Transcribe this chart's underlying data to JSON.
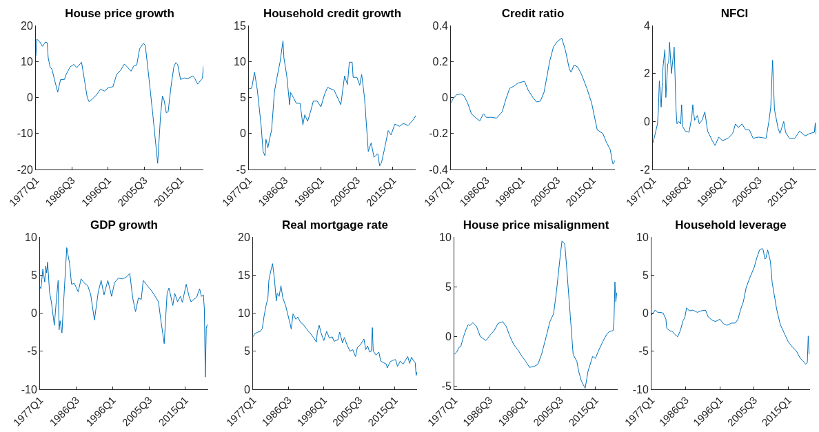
{
  "chart_data": [
    {
      "type": "line",
      "title": "House price growth",
      "color": "#0072bd",
      "xlim": [
        "1977-01",
        "2021-01"
      ],
      "ylim": [
        -20,
        20
      ],
      "yticks": [
        -20,
        -10,
        0,
        10,
        20
      ],
      "xticks": [
        {
          "value": "1977-01",
          "label": "1977Q1"
        },
        {
          "value": "1986-07",
          "label": "1986Q3"
        },
        {
          "value": "1996-01",
          "label": "1996Q1"
        },
        {
          "value": "2005-07",
          "label": "2005Q3"
        },
        {
          "value": "2015-01",
          "label": "2015Q1"
        }
      ],
      "x": [
        "1977-01",
        "1977-04",
        "1978-01",
        "1978-10",
        "1979-07",
        "1980-01",
        "1980-04",
        "1980-10",
        "1981-04",
        "1982-01",
        "1982-10",
        "1983-07",
        "1984-07",
        "1985-01",
        "1986-01",
        "1987-01",
        "1987-10",
        "1989-01",
        "1989-10",
        "1990-07",
        "1991-01",
        "1991-10",
        "1992-10",
        "1994-01",
        "1995-01",
        "1996-01",
        "1997-04",
        "1998-04",
        "1999-04",
        "2000-04",
        "2001-01",
        "2002-01",
        "2002-10",
        "2003-07",
        "2004-04",
        "2005-04",
        "2005-10",
        "2006-10",
        "2007-10",
        "2009-01",
        "2009-10",
        "2010-04",
        "2010-10",
        "2011-04",
        "2011-10",
        "2012-07",
        "2013-04",
        "2013-10",
        "2014-04",
        "2015-01",
        "2016-01",
        "2017-01",
        "2018-04",
        "2018-10",
        "2019-07",
        "2020-07",
        "2020-10",
        "2021-01"
      ],
      "values": [
        11.5,
        16.2,
        15.5,
        14.2,
        15.4,
        15.2,
        11,
        8.5,
        7.8,
        4.5,
        1.5,
        5,
        5,
        6.5,
        8.5,
        9.2,
        8.3,
        9.8,
        5,
        0,
        -1.2,
        -0.5,
        0.5,
        2.3,
        1.8,
        2.7,
        3,
        6.5,
        7.5,
        9.3,
        8.5,
        7.3,
        8.8,
        9,
        13.5,
        15,
        14.5,
        5,
        -5,
        -18.3,
        -5,
        0.4,
        -1,
        -4.2,
        -4,
        3,
        8.5,
        9.7,
        9.2,
        5,
        5.4,
        5.3,
        6,
        5.3,
        3.7,
        5,
        5.3,
        8.7
      ]
    },
    {
      "type": "line",
      "title": "Household credit growth",
      "color": "#0072bd",
      "xlim": [
        "1977-01",
        "2021-01"
      ],
      "ylim": [
        -5,
        15
      ],
      "yticks": [
        -5,
        0,
        5,
        10,
        15
      ],
      "xticks": [
        {
          "value": "1977-01",
          "label": "1977Q1"
        },
        {
          "value": "1986-07",
          "label": "1986Q3"
        },
        {
          "value": "1996-01",
          "label": "1996Q1"
        },
        {
          "value": "2005-07",
          "label": "2005Q3"
        },
        {
          "value": "2015-01",
          "label": "2015Q1"
        }
      ],
      "x": [
        "1977-01",
        "1977-10",
        "1978-07",
        "1979-04",
        "1980-04",
        "1980-10",
        "1981-04",
        "1981-07",
        "1982-01",
        "1982-07",
        "1983-01",
        "1983-10",
        "1984-07",
        "1985-04",
        "1986-01",
        "1986-04",
        "1987-01",
        "1987-10",
        "1988-01",
        "1988-10",
        "1989-07",
        "1990-07",
        "1991-04",
        "1991-10",
        "1992-07",
        "1993-04",
        "1994-01",
        "1995-01",
        "1996-01",
        "1997-01",
        "1997-10",
        "1999-07",
        "2001-04",
        "2002-04",
        "2003-01",
        "2003-07",
        "2004-04",
        "2004-07",
        "2005-07",
        "2006-04",
        "2006-10",
        "2007-07",
        "2008-07",
        "2009-04",
        "2010-01",
        "2011-01",
        "2011-07",
        "2012-01",
        "2012-10",
        "2013-10",
        "2014-07",
        "2015-07",
        "2016-10",
        "2017-10",
        "2019-01",
        "2020-07",
        "2021-01"
      ],
      "values": [
        6.2,
        6.3,
        8.5,
        6,
        1,
        -2.5,
        -3.1,
        -0.8,
        -2,
        -0.7,
        0.5,
        5.8,
        8,
        10,
        12.9,
        10.5,
        8,
        4,
        5.7,
        5,
        4.2,
        4.2,
        1.2,
        2.6,
        1.7,
        3,
        4.5,
        4.5,
        3.7,
        5.5,
        6.4,
        6,
        4,
        8,
        6.8,
        9.9,
        9.9,
        7.8,
        7.8,
        6.7,
        8.2,
        5,
        -2.5,
        -1.3,
        -3.3,
        -2.8,
        -4.5,
        -4,
        -2.2,
        0.4,
        -0.2,
        1.3,
        1,
        1.4,
        1.1,
        2,
        2.5
      ]
    },
    {
      "type": "line",
      "title": "Credit ratio",
      "color": "#0072bd",
      "xlim": [
        "1977-01",
        "2021-01"
      ],
      "ylim": [
        -0.4,
        0.4
      ],
      "yticks": [
        -0.4,
        -0.2,
        0,
        0.2,
        0.4
      ],
      "xticks": [
        {
          "value": "1977-01",
          "label": "1977Q1"
        },
        {
          "value": "1986-07",
          "label": "1986Q3"
        },
        {
          "value": "1996-01",
          "label": "1996Q1"
        },
        {
          "value": "2005-07",
          "label": "2005Q3"
        },
        {
          "value": "2015-01",
          "label": "2015Q1"
        }
      ],
      "x": [
        "1977-01",
        "1977-07",
        "1978-07",
        "1979-10",
        "1980-07",
        "1981-07",
        "1982-07",
        "1983-07",
        "1984-10",
        "1985-10",
        "1986-07",
        "1988-01",
        "1989-04",
        "1990-10",
        "1991-10",
        "1992-10",
        "1994-01",
        "1995-01",
        "1996-10",
        "1997-10",
        "1999-01",
        "2000-01",
        "2001-01",
        "2002-01",
        "2003-07",
        "2004-07",
        "2005-07",
        "2006-10",
        "2007-10",
        "2008-10",
        "2009-04",
        "2010-01",
        "2011-01",
        "2012-01",
        "2013-07",
        "2014-10",
        "2016-04",
        "2017-10",
        "2018-10",
        "2019-10",
        "2020-04",
        "2020-07",
        "2021-01"
      ],
      "values": [
        -0.03,
        -0.01,
        0.015,
        0.02,
        0.01,
        -0.03,
        -0.09,
        -0.11,
        -0.13,
        -0.09,
        -0.11,
        -0.11,
        -0.115,
        -0.08,
        -0.01,
        0.05,
        0.065,
        0.08,
        0.09,
        0.04,
        0,
        -0.025,
        -0.02,
        0.03,
        0.2,
        0.28,
        0.31,
        0.33,
        0.26,
        0.16,
        0.14,
        0.18,
        0.17,
        0.13,
        0.05,
        -0.03,
        -0.18,
        -0.2,
        -0.25,
        -0.29,
        -0.35,
        -0.37,
        -0.35
      ]
    },
    {
      "type": "line",
      "title": "NFCI",
      "color": "#0072bd",
      "xlim": [
        "1977-01",
        "2021-01"
      ],
      "ylim": [
        -2,
        4
      ],
      "yticks": [
        -2,
        0,
        2,
        4
      ],
      "xticks": [
        {
          "value": "1977-01",
          "label": "1977Q1"
        },
        {
          "value": "1986-07",
          "label": "1986Q3"
        },
        {
          "value": "1996-01",
          "label": "1996Q1"
        },
        {
          "value": "2005-07",
          "label": "2005Q3"
        },
        {
          "value": "2015-01",
          "label": "2015Q1"
        }
      ],
      "x": [
        "1977-01",
        "1977-07",
        "1978-04",
        "1978-07",
        "1978-10",
        "1979-04",
        "1979-10",
        "1980-04",
        "1980-07",
        "1981-01",
        "1981-04",
        "1981-07",
        "1982-01",
        "1982-10",
        "1983-04",
        "1983-07",
        "1984-01",
        "1984-07",
        "1984-10",
        "1985-01",
        "1985-10",
        "1986-10",
        "1987-07",
        "1987-10",
        "1988-04",
        "1989-01",
        "1989-07",
        "1990-04",
        "1991-01",
        "1991-10",
        "1993-01",
        "1993-10",
        "1994-10",
        "1995-10",
        "1997-04",
        "1998-07",
        "1999-04",
        "2000-01",
        "2001-01",
        "2002-01",
        "2003-01",
        "2004-01",
        "2005-07",
        "2007-07",
        "2008-04",
        "2008-10",
        "2009-04",
        "2009-10",
        "2010-10",
        "2011-04",
        "2012-04",
        "2012-10",
        "2013-10",
        "2015-04",
        "2016-07",
        "2018-01",
        "2019-04",
        "2020-07",
        "2020-10",
        "2021-01"
      ],
      "values": [
        -0.9,
        -0.6,
        -0.1,
        0.5,
        1.7,
        0.6,
        2.3,
        3,
        1,
        2.4,
        2.45,
        3.3,
        2,
        3.1,
        0.5,
        -0.1,
        0,
        -0.1,
        0.7,
        -0.2,
        -0.4,
        -0.45,
        0.2,
        0.7,
        0.05,
        0.25,
        -0.1,
        0.05,
        0.4,
        -0.4,
        -0.8,
        -1,
        -0.65,
        -0.8,
        -0.7,
        -0.5,
        -0.1,
        -0.25,
        -0.1,
        -0.35,
        -0.35,
        -0.7,
        -0.65,
        -0.7,
        0,
        0.6,
        2.55,
        0.5,
        -0.3,
        -0.5,
        0,
        -0.45,
        -0.7,
        -0.7,
        -0.4,
        -0.6,
        -0.5,
        -0.45,
        -0.05,
        -0.55
      ]
    },
    {
      "type": "line",
      "title": "GDP growth",
      "color": "#0072bd",
      "xlim": [
        "1977-01",
        "2021-01"
      ],
      "ylim": [
        -10,
        10
      ],
      "yticks": [
        -10,
        -5,
        0,
        5,
        10
      ],
      "xticks": [
        {
          "value": "1977-01",
          "label": "1977Q1"
        },
        {
          "value": "1986-07",
          "label": "1986Q3"
        },
        {
          "value": "1996-01",
          "label": "1996Q1"
        },
        {
          "value": "2005-07",
          "label": "2005Q3"
        },
        {
          "value": "2015-01",
          "label": "2015Q1"
        }
      ],
      "x": [
        "1977-01",
        "1977-04",
        "1977-10",
        "1978-04",
        "1978-07",
        "1978-10",
        "1979-01",
        "1979-07",
        "1980-01",
        "1980-10",
        "1981-04",
        "1981-10",
        "1982-01",
        "1982-04",
        "1982-10",
        "1983-04",
        "1984-01",
        "1984-10",
        "1985-04",
        "1986-01",
        "1987-01",
        "1987-10",
        "1988-07",
        "1989-07",
        "1990-04",
        "1991-04",
        "1992-04",
        "1993-01",
        "1993-10",
        "1994-10",
        "1995-10",
        "1996-07",
        "1997-07",
        "1998-07",
        "1999-07",
        "2000-07",
        "2001-04",
        "2002-01",
        "2002-10",
        "2003-07",
        "2004-01",
        "2005-04",
        "2006-04",
        "2007-04",
        "2008-01",
        "2008-07",
        "2009-07",
        "2010-04",
        "2010-10",
        "2011-10",
        "2012-04",
        "2013-01",
        "2013-10",
        "2014-04",
        "2015-04",
        "2016-01",
        "2016-07",
        "2018-01",
        "2018-10",
        "2019-04",
        "2019-10",
        "2020-01",
        "2020-04",
        "2020-07",
        "2020-10"
      ],
      "values": [
        3.5,
        3.2,
        5.8,
        4.1,
        6.2,
        5.3,
        6.7,
        2.8,
        1.4,
        -1.6,
        1.5,
        4.3,
        -2.2,
        -1,
        -2.6,
        2,
        8.6,
        6.5,
        3.8,
        3.9,
        2.8,
        4.5,
        4,
        3.6,
        2.5,
        -0.9,
        2.8,
        4.3,
        2.4,
        4.3,
        2.2,
        4,
        4.6,
        4.5,
        4.7,
        5.2,
        2,
        0.2,
        2,
        1.8,
        4.3,
        3.5,
        2.9,
        2.1,
        1.5,
        -0.5,
        -4,
        2.6,
        3.3,
        1,
        2.6,
        1.5,
        2.2,
        1.4,
        3.8,
        2.2,
        1.5,
        2.1,
        3.2,
        2.2,
        2.4,
        0.5,
        -8.4,
        -2,
        -1.5
      ]
    },
    {
      "type": "line",
      "title": "Real mortgage rate",
      "color": "#0072bd",
      "xlim": [
        "1977-01",
        "2021-01"
      ],
      "ylim": [
        0,
        20
      ],
      "yticks": [
        0,
        5,
        10,
        15,
        20
      ],
      "xticks": [
        {
          "value": "1977-01",
          "label": "1977Q1"
        },
        {
          "value": "1986-07",
          "label": "1986Q3"
        },
        {
          "value": "1996-01",
          "label": "1996Q1"
        },
        {
          "value": "2005-07",
          "label": "2005Q3"
        },
        {
          "value": "2015-01",
          "label": "2015Q1"
        }
      ],
      "x": [
        "1977-01",
        "1977-07",
        "1978-04",
        "1979-01",
        "1979-07",
        "1980-01",
        "1980-07",
        "1981-01",
        "1981-04",
        "1981-10",
        "1982-04",
        "1982-10",
        "1983-04",
        "1983-07",
        "1984-01",
        "1984-07",
        "1985-01",
        "1985-10",
        "1986-04",
        "1987-01",
        "1987-04",
        "1987-10",
        "1988-07",
        "1989-01",
        "1989-10",
        "1990-07",
        "1991-04",
        "1992-04",
        "1993-04",
        "1994-01",
        "1994-04",
        "1994-10",
        "1995-04",
        "1996-01",
        "1996-10",
        "1997-07",
        "1998-04",
        "1998-10",
        "1999-10",
        "2000-04",
        "2001-01",
        "2001-07",
        "2002-04",
        "2003-01",
        "2003-10",
        "2004-07",
        "2005-01",
        "2005-10",
        "2006-10",
        "2007-04",
        "2007-10",
        "2008-04",
        "2008-10",
        "2009-01",
        "2009-04",
        "2010-01",
        "2010-10",
        "2011-04",
        "2012-01",
        "2012-10",
        "2013-01",
        "2013-10",
        "2014-07",
        "2015-04",
        "2015-10",
        "2016-07",
        "2017-04",
        "2018-01",
        "2018-07",
        "2019-01",
        "2019-07",
        "2020-01",
        "2020-07",
        "2020-10",
        "2021-01"
      ],
      "values": [
        6.9,
        7.3,
        7.5,
        7.6,
        8,
        9.7,
        11,
        12,
        14.3,
        15.5,
        16.5,
        14.5,
        11.6,
        12.6,
        12.2,
        13.6,
        12,
        11,
        10,
        8.5,
        7.9,
        9.9,
        9.2,
        9.5,
        8.8,
        8.5,
        8,
        7.4,
        6.8,
        6.2,
        7.5,
        8.4,
        7.4,
        6.4,
        7.6,
        6.7,
        6.9,
        6.3,
        6.5,
        7.5,
        6.1,
        6.8,
        5.8,
        5,
        5.2,
        4.3,
        5.5,
        5.8,
        6.6,
        5.2,
        5.7,
        4.9,
        5,
        8.1,
        5,
        4.5,
        4.9,
        3.7,
        3.5,
        3.3,
        2.8,
        3.6,
        3.8,
        3.9,
        3,
        3.7,
        3.3,
        3.9,
        4.3,
        3.4,
        4.2,
        3.8,
        3.5,
        1.8,
        2.3
      ]
    },
    {
      "type": "line",
      "title": "House price misalignment",
      "color": "#0072bd",
      "xlim": [
        "1977-01",
        "2021-01"
      ],
      "ylim": [
        -5.3,
        10
      ],
      "yticks": [
        -5,
        0,
        5,
        10
      ],
      "xticks": [
        {
          "value": "1977-01",
          "label": "1977Q1"
        },
        {
          "value": "1986-07",
          "label": "1986Q3"
        },
        {
          "value": "1996-01",
          "label": "1996Q1"
        },
        {
          "value": "2005-07",
          "label": "2005Q3"
        },
        {
          "value": "2015-01",
          "label": "2015Q1"
        }
      ],
      "x": [
        "1977-01",
        "1977-10",
        "1978-04",
        "1978-10",
        "1979-07",
        "1980-04",
        "1980-10",
        "1981-04",
        "1982-01",
        "1983-01",
        "1984-01",
        "1985-07",
        "1986-10",
        "1987-10",
        "1988-10",
        "1990-01",
        "1991-01",
        "1992-01",
        "1993-01",
        "1994-04",
        "1995-04",
        "1996-04",
        "1997-04",
        "1998-07",
        "1999-07",
        "2000-07",
        "2001-10",
        "2002-10",
        "2003-10",
        "2004-07",
        "2005-07",
        "2006-01",
        "2006-10",
        "2007-04",
        "2008-04",
        "2009-01",
        "2010-01",
        "2010-07",
        "2011-04",
        "2012-04",
        "2013-01",
        "2014-04",
        "2015-01",
        "2016-01",
        "2017-01",
        "2018-01",
        "2018-10",
        "2019-10",
        "2020-01",
        "2020-04",
        "2020-07",
        "2020-10"
      ],
      "values": [
        -1.8,
        -1.5,
        -1.1,
        -1,
        0,
        0.8,
        1.2,
        1.1,
        1.4,
        1,
        0,
        -0.4,
        0.2,
        0.6,
        1.3,
        1.5,
        1,
        0,
        -0.8,
        -1.4,
        -2,
        -2.5,
        -3.1,
        -3,
        -2.8,
        -1.8,
        0,
        1.5,
        2.3,
        4.5,
        8,
        9.6,
        9.3,
        7,
        2,
        -1.8,
        -2.5,
        -3.5,
        -4.5,
        -5.2,
        -3.5,
        -2,
        -2.2,
        -1.3,
        -0.5,
        0.2,
        0.5,
        0.6,
        1.5,
        5.5,
        3.5,
        4.4
      ]
    },
    {
      "type": "line",
      "title": "Household leverage",
      "color": "#0072bd",
      "xlim": [
        "1977-01",
        "2021-01"
      ],
      "ylim": [
        -10,
        10
      ],
      "yticks": [
        -10,
        -5,
        0,
        5,
        10
      ],
      "xticks": [
        {
          "value": "1977-01",
          "label": "1977Q1"
        },
        {
          "value": "1986-07",
          "label": "1986Q3"
        },
        {
          "value": "1996-01",
          "label": "1996Q1"
        },
        {
          "value": "2005-07",
          "label": "2005Q3"
        },
        {
          "value": "2015-01",
          "label": "2015Q1"
        }
      ],
      "x": [
        "1977-01",
        "1977-07",
        "1978-01",
        "1978-10",
        "1979-07",
        "1980-04",
        "1981-01",
        "1981-04",
        "1982-01",
        "1982-10",
        "1983-07",
        "1984-04",
        "1985-01",
        "1985-10",
        "1986-04",
        "1986-10",
        "1987-07",
        "1988-07",
        "1989-10",
        "1990-10",
        "1992-01",
        "1992-10",
        "1993-10",
        "1994-10",
        "1996-01",
        "1997-01",
        "1998-01",
        "1999-04",
        "2000-04",
        "2001-01",
        "2001-10",
        "2002-07",
        "2003-04",
        "2004-04",
        "2005-07",
        "2006-04",
        "2007-01",
        "2007-10",
        "2008-01",
        "2008-07",
        "2008-10",
        "2009-04",
        "2010-01",
        "2010-07",
        "2011-10",
        "2012-10",
        "2014-01",
        "2015-01",
        "2016-01",
        "2017-04",
        "2018-04",
        "2019-07",
        "2019-10",
        "2020-01",
        "2020-04",
        "2020-07",
        "2020-10"
      ],
      "values": [
        -0.2,
        0,
        0.4,
        0.1,
        0.1,
        0,
        -0.8,
        -2,
        -2.3,
        -2.4,
        -2.8,
        -3.1,
        -2.3,
        -1,
        -0.6,
        0.7,
        0.3,
        0.4,
        0.1,
        0.3,
        0.4,
        -0.5,
        -0.9,
        -1.1,
        -0.8,
        -1.4,
        -1.6,
        -1.3,
        -1.3,
        -0.8,
        0.5,
        1.5,
        3.3,
        4.6,
        6,
        7.3,
        8.3,
        8.5,
        8.3,
        7.1,
        7.2,
        8.3,
        6.8,
        4,
        0.5,
        -1.5,
        -2.8,
        -3.8,
        -4.4,
        -5,
        -5.9,
        -6.5,
        -6.7,
        -6.6,
        -6.5,
        -3,
        -5.4
      ]
    }
  ]
}
